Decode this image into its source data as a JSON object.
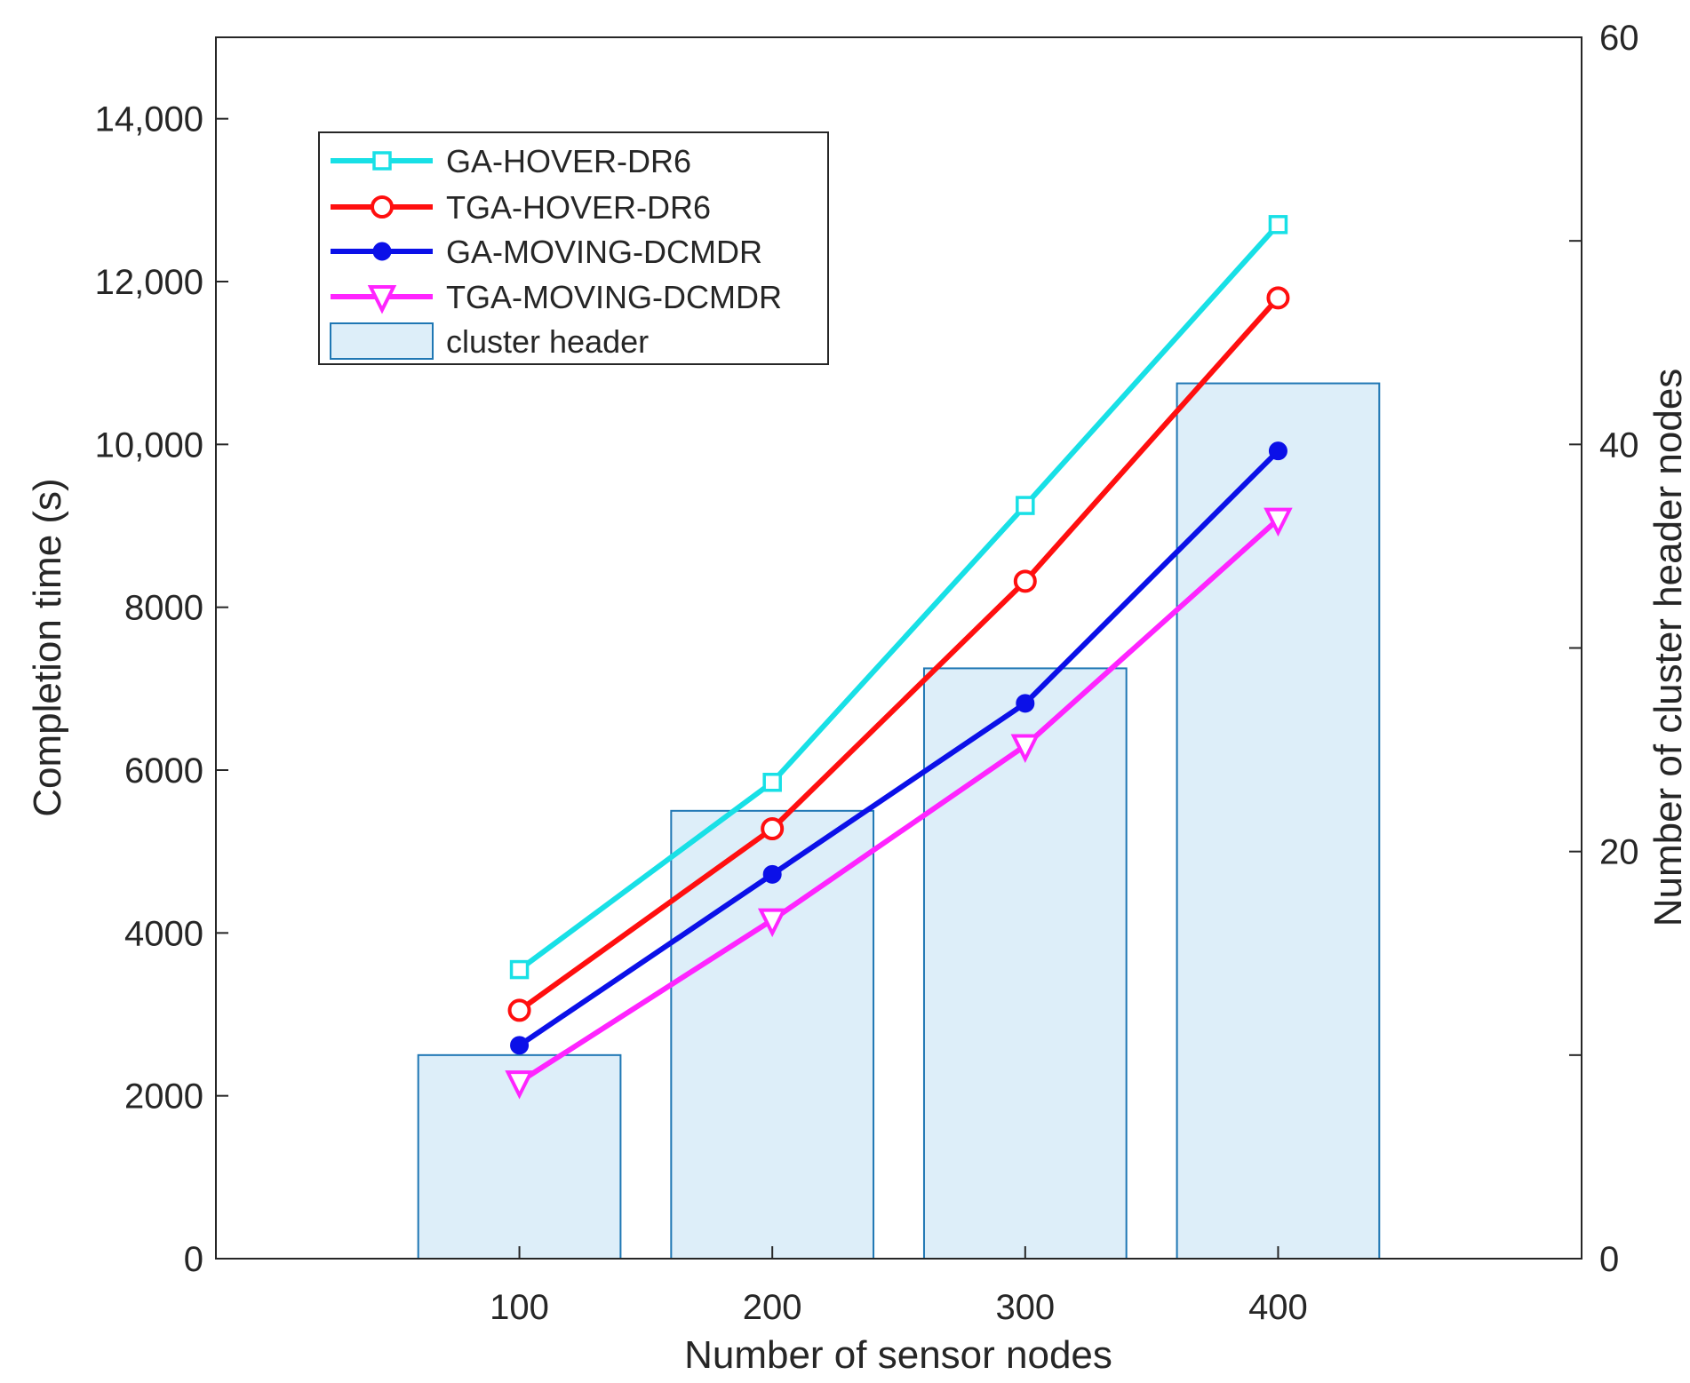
{
  "chart_data": {
    "type": "bar+line",
    "title": "",
    "xlabel": "Number of sensor nodes",
    "ylabel": "Completion time (s)",
    "y2label": "Number of cluster header nodes",
    "x_categories": [
      "100",
      "200",
      "300",
      "400"
    ],
    "x_values": [
      100,
      200,
      300,
      400
    ],
    "xlim": [
      -20,
      520
    ],
    "ylim": [
      0,
      15000
    ],
    "y2lim": [
      0,
      60
    ],
    "y_ticks": [
      0,
      2000,
      4000,
      6000,
      8000,
      10000,
      12000,
      14000
    ],
    "y_tick_labels": [
      "0",
      "2000",
      "4000",
      "6000",
      "8000",
      "10,000",
      "12,000",
      "14,000"
    ],
    "y2_ticks": [
      0,
      20,
      40,
      60
    ],
    "y2_tick_labels": [
      "0",
      "20",
      "40",
      "60"
    ],
    "grid": false,
    "legend_position": "top-left",
    "bars": {
      "name": "cluster header",
      "axis": "right",
      "values": [
        10,
        22,
        29,
        43
      ],
      "color": "#ddeef9",
      "edge_color": "#1f77b4"
    },
    "series": [
      {
        "name": "GA-HOVER-DR6",
        "values": [
          3550,
          5850,
          9250,
          12700
        ],
        "color": "#18e0e6",
        "marker": "square"
      },
      {
        "name": "TGA-HOVER-DR6",
        "values": [
          3050,
          5280,
          8320,
          11800
        ],
        "color": "#ff0f0f",
        "marker": "circle-open"
      },
      {
        "name": "GA-MOVING-DCMDR",
        "values": [
          2620,
          4720,
          6820,
          9920
        ],
        "color": "#0b10e8",
        "marker": "circle-filled"
      },
      {
        "name": "TGA-MOVING-DCMDR",
        "values": [
          2170,
          4160,
          6300,
          9080
        ],
        "color": "#ff24ff",
        "marker": "triangle-down"
      }
    ]
  }
}
